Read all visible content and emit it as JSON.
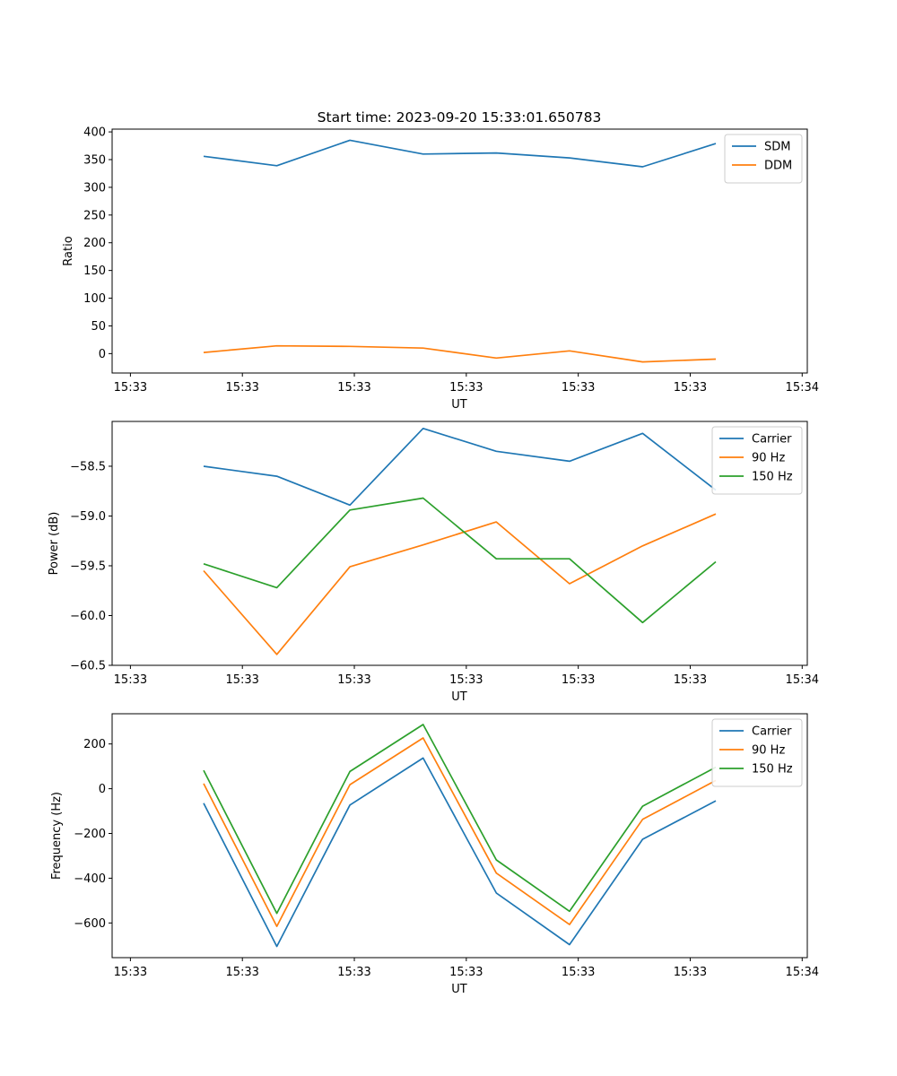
{
  "figure_title": "Start time: 2023-09-20 15:33:01.650783",
  "colors": {
    "blue": "#1f77b4",
    "orange": "#ff7f0e",
    "green": "#2ca02c"
  },
  "chart_data": [
    {
      "type": "line",
      "title": "Start time: 2023-09-20 15:33:01.650783",
      "xlabel": "UT",
      "ylabel": "Ratio",
      "x_index": [
        1,
        2,
        3,
        4,
        5,
        6,
        7,
        8
      ],
      "xlim": [
        -0.25,
        9.25
      ],
      "xticks": [
        0,
        1.53,
        3.06,
        4.59,
        6.12,
        7.65,
        9.18
      ],
      "xtick_labels": [
        "15:33",
        "15:33",
        "15:33",
        "15:33",
        "15:33",
        "15:33",
        "15:34"
      ],
      "ylim": [
        -35,
        405
      ],
      "yticks": [
        0,
        50,
        100,
        150,
        200,
        250,
        300,
        350,
        400
      ],
      "ytick_labels": [
        "0",
        "50",
        "100",
        "150",
        "200",
        "250",
        "300",
        "350",
        "400"
      ],
      "legend_position": "top-right",
      "series": [
        {
          "name": "SDM",
          "color": "#1f77b4",
          "values": [
            356,
            339,
            385,
            360,
            362,
            353,
            337,
            379
          ]
        },
        {
          "name": "DDM",
          "color": "#ff7f0e",
          "values": [
            2,
            14,
            13,
            10,
            -8,
            5,
            -15,
            -10
          ]
        }
      ]
    },
    {
      "type": "line",
      "title": "",
      "xlabel": "UT",
      "ylabel": "Power (dB)",
      "x_index": [
        1,
        2,
        3,
        4,
        5,
        6,
        7,
        8
      ],
      "xlim": [
        -0.25,
        9.25
      ],
      "xticks": [
        0,
        1.53,
        3.06,
        4.59,
        6.12,
        7.65,
        9.18
      ],
      "xtick_labels": [
        "15:33",
        "15:33",
        "15:33",
        "15:33",
        "15:33",
        "15:33",
        "15:34"
      ],
      "ylim": [
        -60.5,
        -58.05
      ],
      "yticks": [
        -60.5,
        -60.0,
        -59.5,
        -59.0,
        -58.5
      ],
      "ytick_labels": [
        "−60.5",
        "−60.0",
        "−59.5",
        "−59.0",
        "−58.5"
      ],
      "legend_position": "top-right",
      "series": [
        {
          "name": "Carrier",
          "color": "#1f77b4",
          "values": [
            -58.5,
            -58.6,
            -58.89,
            -58.12,
            -58.35,
            -58.45,
            -58.17,
            -58.74
          ]
        },
        {
          "name": "90 Hz",
          "color": "#ff7f0e",
          "values": [
            -59.55,
            -60.39,
            -59.51,
            -59.29,
            -59.06,
            -59.68,
            -59.3,
            -58.98
          ]
        },
        {
          "name": "150 Hz",
          "color": "#2ca02c",
          "values": [
            -59.48,
            -59.72,
            -58.94,
            -58.82,
            -59.43,
            -59.43,
            -60.07,
            -59.46
          ]
        }
      ]
    },
    {
      "type": "line",
      "title": "",
      "xlabel": "UT",
      "ylabel": "Frequency (Hz)",
      "x_index": [
        1,
        2,
        3,
        4,
        5,
        6,
        7,
        8
      ],
      "xlim": [
        -0.25,
        9.25
      ],
      "xticks": [
        0,
        1.53,
        3.06,
        4.59,
        6.12,
        7.65,
        9.18
      ],
      "xtick_labels": [
        "15:33",
        "15:33",
        "15:33",
        "15:33",
        "15:33",
        "15:33",
        "15:34"
      ],
      "ylim": [
        -755,
        335
      ],
      "yticks": [
        -600,
        -400,
        -200,
        0,
        200
      ],
      "ytick_labels": [
        "−600",
        "−400",
        "−200",
        "0",
        "200"
      ],
      "legend_position": "top-right",
      "series": [
        {
          "name": "Carrier",
          "color": "#1f77b4",
          "values": [
            -65,
            -705,
            -73,
            137,
            -466,
            -697,
            -226,
            -54
          ]
        },
        {
          "name": "90 Hz",
          "color": "#ff7f0e",
          "values": [
            23,
            -615,
            18,
            227,
            -377,
            -607,
            -137,
            37
          ]
        },
        {
          "name": "150 Hz",
          "color": "#2ca02c",
          "values": [
            82,
            -557,
            77,
            287,
            -318,
            -548,
            -78,
            96
          ]
        }
      ]
    }
  ]
}
